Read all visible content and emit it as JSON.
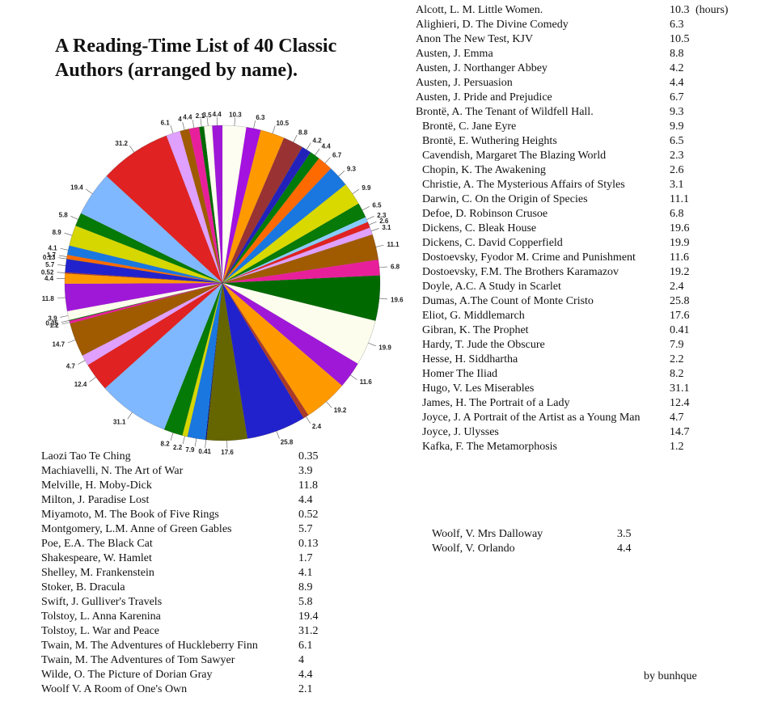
{
  "chart_data": {
    "type": "pie",
    "title": "A Reading-Time List of 40 Classic Authors (arranged by name).",
    "unit_label": "(hours)",
    "credit": "by bunhque",
    "entries": [
      {
        "name": "Alcott, L. M. Little Women.",
        "value": 10.3,
        "label": "10.3",
        "color": "#fdfdf2"
      },
      {
        "name": "Alighieri, D. The Divine Comedy",
        "value": 6.3,
        "label": "6.3",
        "color": "#a412e0"
      },
      {
        "name": "Anon The New Test, KJV",
        "value": 10.5,
        "label": "10.5",
        "color": "#ff9900"
      },
      {
        "name": "Austen, J. Emma",
        "value": 8.8,
        "label": "8.8",
        "color": "#993333"
      },
      {
        "name": "Austen, J. Northanger Abbey",
        "value": 4.2,
        "label": "4.2",
        "color": "#2222bb"
      },
      {
        "name": "Austen, J. Persuasion",
        "value": 4.4,
        "label": "4.4",
        "color": "#007a0a"
      },
      {
        "name": "Austen, J. Pride and Prejudice",
        "value": 6.7,
        "label": "6.7",
        "color": "#ff6a00"
      },
      {
        "name": "Brontë, A. The Tenant of Wildfell Hall.",
        "value": 9.3,
        "label": "9.3",
        "color": "#1a77e0"
      },
      {
        "name": "Brontë, C. Jane Eyre",
        "value": 9.9,
        "label": "9.9",
        "color": "#d9d900"
      },
      {
        "name": "Brontë, E. Wuthering Heights",
        "value": 6.5,
        "label": "6.5",
        "color": "#077a07"
      },
      {
        "name": "Cavendish, Margaret The Blazing World",
        "value": 2.3,
        "label": "2.3",
        "color": "#88ccff"
      },
      {
        "name": "Chopin, K. The Awakening",
        "value": 2.6,
        "label": "2.6",
        "color": "#e02222"
      },
      {
        "name": "Christie, A. The Mysterious Affairs of Styles",
        "value": 3.1,
        "label": "3.1",
        "color": "#e0a0ff"
      },
      {
        "name": "Darwin, C. On the Origin of Species",
        "value": 11.1,
        "label": "11.1",
        "color": "#a05a00"
      },
      {
        "name": "Defoe, D. Robinson Crusoe",
        "value": 6.8,
        "label": "6.8",
        "color": "#e81f9a"
      },
      {
        "name": "Dickens, C. Bleak House",
        "value": 19.6,
        "label": "19.6",
        "color": "#006a00"
      },
      {
        "name": "Dickens, C. David Copperfield",
        "value": 19.9,
        "label": "19.9",
        "color": "#fdfdee"
      },
      {
        "name": "Dostoevsky, Fyodor M. Crime and Punishment",
        "value": 11.6,
        "label": "11.6",
        "color": "#9f18d8"
      },
      {
        "name": "Dostoevsky, F.M. The Brothers Karamazov",
        "value": 19.2,
        "label": "19.2",
        "color": "#ff9900"
      },
      {
        "name": "Doyle, A.C. A Study in Scarlet",
        "value": 2.4,
        "label": "2.4",
        "color": "#aa3a2a"
      },
      {
        "name": "Dumas, A.The Count of Monte Cristo",
        "value": 25.8,
        "label": "25.8",
        "color": "#2222cc"
      },
      {
        "name": "Eliot, G. Middlemarch",
        "value": 17.6,
        "label": "17.6",
        "color": "#666600"
      },
      {
        "name": "Gibran, K.  The Prophet",
        "value": 0.41,
        "label": "0.41",
        "color": "#0a0a70"
      },
      {
        "name": "Hardy, T. Jude the Obscure",
        "value": 7.9,
        "label": "7.9",
        "color": "#1a77e0"
      },
      {
        "name": "Hesse, H. Siddhartha",
        "value": 2.2,
        "label": "2.2",
        "color": "#d6d600"
      },
      {
        "name": "Homer The Iliad",
        "value": 8.2,
        "label": "8.2",
        "color": "#067a06"
      },
      {
        "name": "Hugo, V. Les Miserables",
        "value": 31.1,
        "label": "31.1",
        "color": "#80b8ff"
      },
      {
        "name": "James, H. The Portrait of a Lady",
        "value": 12.4,
        "label": "12.4",
        "color": "#e02222"
      },
      {
        "name": "Joyce, J. A Portrait of the Artist as a Young Man",
        "value": 4.7,
        "label": "4.7",
        "color": "#e0a0ff"
      },
      {
        "name": "Joyce, J. Ulysses",
        "value": 14.7,
        "label": "14.7",
        "color": "#a05a00"
      },
      {
        "name": "Kafka, F. The Metamorphosis",
        "value": 1.2,
        "label": "1.2",
        "color": "#e81f9a"
      },
      {
        "name": "Laozi Tao Te Ching",
        "value": 0.35,
        "label": "0.35",
        "color": "#006a00"
      },
      {
        "name": "Machiavelli, N. The Art of War",
        "value": 3.9,
        "label": "3.9",
        "color": "#fdfdee"
      },
      {
        "name": "Melville, H. Moby-Dick",
        "value": 11.8,
        "label": "11.8",
        "color": "#9f18d8"
      },
      {
        "name": "Milton, J. Paradise Lost",
        "value": 4.4,
        "label": "4.4",
        "color": "#ff9900"
      },
      {
        "name": "Miyamoto, M. The Book of Five Rings",
        "value": 0.52,
        "label": "0.52",
        "color": "#aa3a2a"
      },
      {
        "name": "Montgomery, L.M. Anne of Green Gables",
        "value": 5.7,
        "label": "5.7",
        "color": "#2222cc"
      },
      {
        "name": "Poe, E.A. The Black Cat",
        "value": 0.13,
        "label": "0.13",
        "color": "#666600"
      },
      {
        "name": "Shakespeare, W. Hamlet",
        "value": 1.7,
        "label": "1.7",
        "color": "#ff6a00"
      },
      {
        "name": "Shelley, M. Frankenstein",
        "value": 4.1,
        "label": "4.1",
        "color": "#1a77e0"
      },
      {
        "name": "Stoker, B. Dracula",
        "value": 8.9,
        "label": "8.9",
        "color": "#d6d600"
      },
      {
        "name": "Swift, J. Gulliver's Travels",
        "value": 5.8,
        "label": "5.8",
        "color": "#067a06"
      },
      {
        "name": "Tolstoy, L. Anna Karenina",
        "value": 19.4,
        "label": "19.4",
        "color": "#80b8ff"
      },
      {
        "name": "Tolstoy, L. War and Peace",
        "value": 31.2,
        "label": "31.2",
        "color": "#e02222"
      },
      {
        "name": "Twain, M. The Adventures of Huckleberry Finn",
        "value": 6.1,
        "label": "6.1",
        "color": "#e0a0ff"
      },
      {
        "name": "Twain, M. The Adventures of Tom Sawyer",
        "value": 4,
        "label": "4",
        "color": "#a05a00"
      },
      {
        "name": "Wilde, O. The Picture of Dorian Gray",
        "value": 4.4,
        "label": "4.4",
        "color": "#e81f9a"
      },
      {
        "name": "Woolf V. A Room of One's Own",
        "value": 2.1,
        "label": "2.1",
        "color": "#006a00"
      },
      {
        "name": "Woolf, V. Mrs Dalloway",
        "value": 3.5,
        "label": "3.5",
        "color": "#fdfdee"
      },
      {
        "name": "Woolf, V. Orlando",
        "value": 4.4,
        "label": "4.4",
        "color": "#9f18d8"
      }
    ]
  }
}
